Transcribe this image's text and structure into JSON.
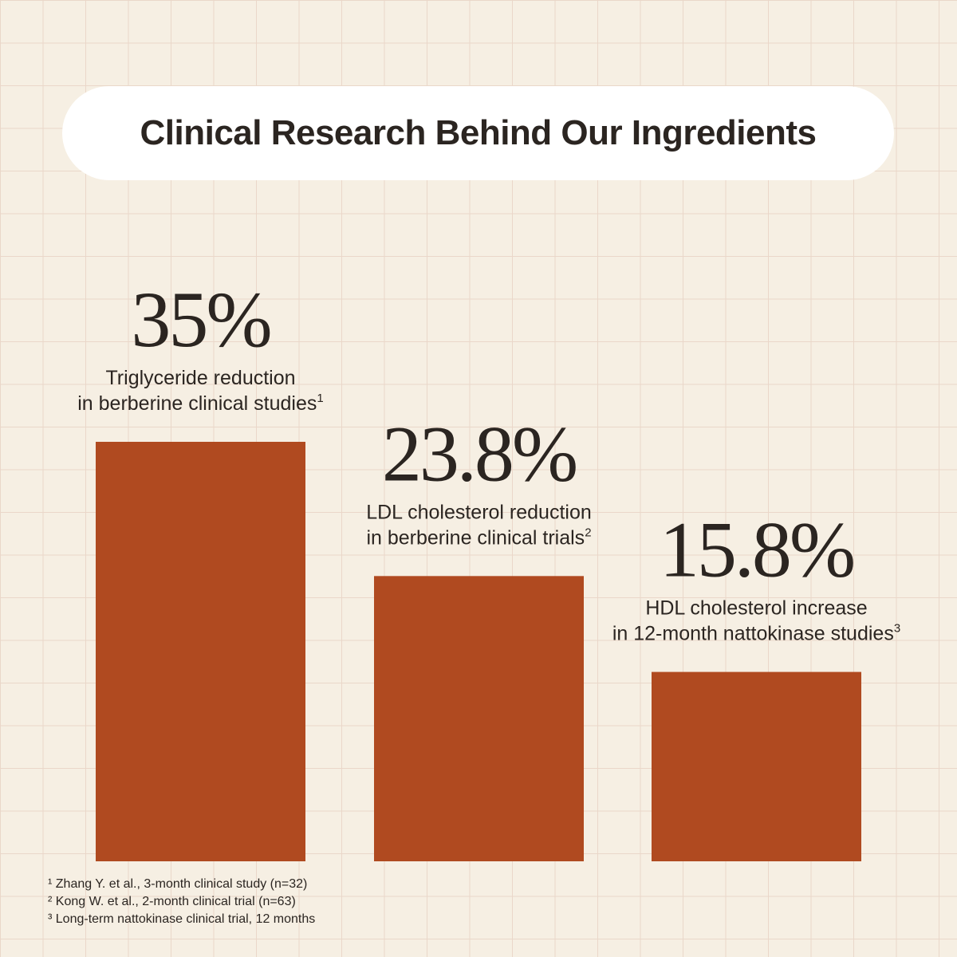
{
  "title": "Clinical Research Behind Our Ingredients",
  "colors": {
    "bar": "#b04a20",
    "background": "#f6efe3",
    "grid": "#ead7c9",
    "text": "#2b2521"
  },
  "chart_data": {
    "type": "bar",
    "title": "Clinical Research Behind Our Ingredients",
    "xlabel": "",
    "ylabel": "",
    "grid": true,
    "unit": "%",
    "bars": [
      {
        "value": 35,
        "value_label": "35%",
        "label_line1": "Triglyceride reduction",
        "label_line2": "in berberine clinical studies",
        "footnote_marker": "1"
      },
      {
        "value": 23.8,
        "value_label": "23.8%",
        "label_line1": "LDL cholesterol reduction",
        "label_line2": "in berberine clinical trials",
        "footnote_marker": "2"
      },
      {
        "value": 15.8,
        "value_label": "15.8%",
        "label_line1": "HDL cholesterol increase",
        "label_line2": "in 12-month nattokinase studies",
        "footnote_marker": "3"
      }
    ]
  },
  "footnotes": [
    {
      "marker": "¹",
      "text": "Zhang Y. et al., 3-month clinical study (n=32)"
    },
    {
      "marker": "²",
      "text": "Kong W. et al., 2-month clinical trial (n=63)"
    },
    {
      "marker": "³",
      "text": "Long-term nattokinase clinical trial, 12 months"
    }
  ]
}
